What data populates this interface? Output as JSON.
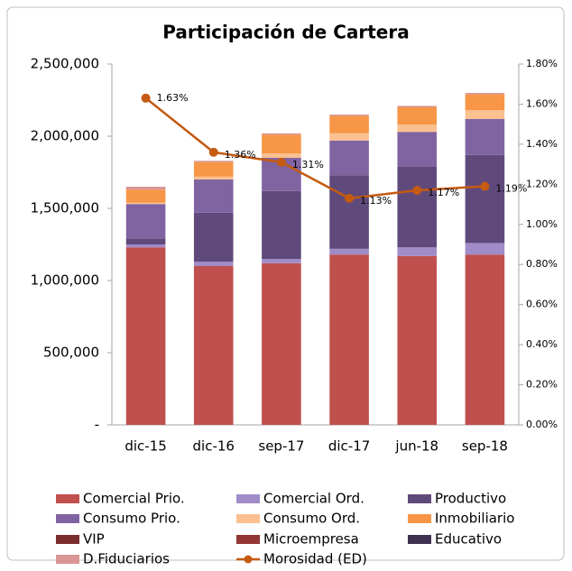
{
  "chart_data": {
    "type": "bar",
    "stacked": true,
    "title": "Participación de Cartera",
    "categories": [
      "dic-15",
      "dic-16",
      "sep-17",
      "dic-17",
      "jun-18",
      "sep-18"
    ],
    "series": [
      {
        "name": "Comercial Prio.",
        "color": "#c0504d",
        "values": [
          1230000,
          1100000,
          1120000,
          1180000,
          1170000,
          1180000
        ]
      },
      {
        "name": "Comercial Ord.",
        "color": "#a08cc8",
        "values": [
          20000,
          30000,
          30000,
          40000,
          60000,
          80000
        ]
      },
      {
        "name": "Productivo",
        "color": "#604a7b",
        "values": [
          40000,
          340000,
          470000,
          510000,
          560000,
          610000
        ]
      },
      {
        "name": "Consumo Prio.",
        "color": "#8064a2",
        "values": [
          240000,
          230000,
          230000,
          240000,
          240000,
          250000
        ]
      },
      {
        "name": "Consumo Ord.",
        "color": "#fac090",
        "values": [
          10000,
          20000,
          30000,
          50000,
          50000,
          60000
        ]
      },
      {
        "name": "Inmobiliario",
        "color": "#f79646",
        "values": [
          90000,
          100000,
          130000,
          120000,
          120000,
          110000
        ]
      },
      {
        "name": "VIP",
        "color": "#7b2c2c",
        "values": [
          0,
          0,
          0,
          0,
          0,
          0
        ]
      },
      {
        "name": "Microempresa",
        "color": "#943634",
        "values": [
          0,
          0,
          0,
          0,
          0,
          0
        ]
      },
      {
        "name": "Educativo",
        "color": "#3f3151",
        "values": [
          0,
          0,
          0,
          0,
          0,
          0
        ]
      },
      {
        "name": "D.Fiduciarios",
        "color": "#d99694",
        "values": [
          20000,
          10000,
          10000,
          10000,
          10000,
          10000
        ]
      },
      {
        "name": "Morosidad (ED)",
        "color": "#c55a11",
        "type": "line",
        "axis": "y2",
        "values": [
          1.63,
          1.36,
          1.31,
          1.13,
          1.17,
          1.19
        ],
        "value_labels": [
          "1.63%",
          "1.36%",
          "1.31%",
          "1.13%",
          "1.17%",
          "1.19%"
        ]
      }
    ],
    "ylim": [
      0,
      2500000
    ],
    "yticks": [
      {
        "value": 0,
        "label": "-"
      },
      {
        "value": 500000,
        "label": "500,000"
      },
      {
        "value": 1000000,
        "label": "1,000,000"
      },
      {
        "value": 1500000,
        "label": "1,500,000"
      },
      {
        "value": 2000000,
        "label": "2,000,000"
      },
      {
        "value": 2500000,
        "label": "2,500,000"
      }
    ],
    "y2lim": [
      0,
      1.8
    ],
    "y2ticks": [
      {
        "value": 0,
        "label": "0.00%"
      },
      {
        "value": 0.2,
        "label": "0.20%"
      },
      {
        "value": 0.4,
        "label": "0.40%"
      },
      {
        "value": 0.6,
        "label": "0.60%"
      },
      {
        "value": 0.8,
        "label": "0.80%"
      },
      {
        "value": 1.0,
        "label": "1.00%"
      },
      {
        "value": 1.2,
        "label": "1.20%"
      },
      {
        "value": 1.4,
        "label": "1.40%"
      },
      {
        "value": 1.6,
        "label": "1.60%"
      },
      {
        "value": 1.8,
        "label": "1.80%"
      }
    ],
    "legend": "bottom"
  }
}
